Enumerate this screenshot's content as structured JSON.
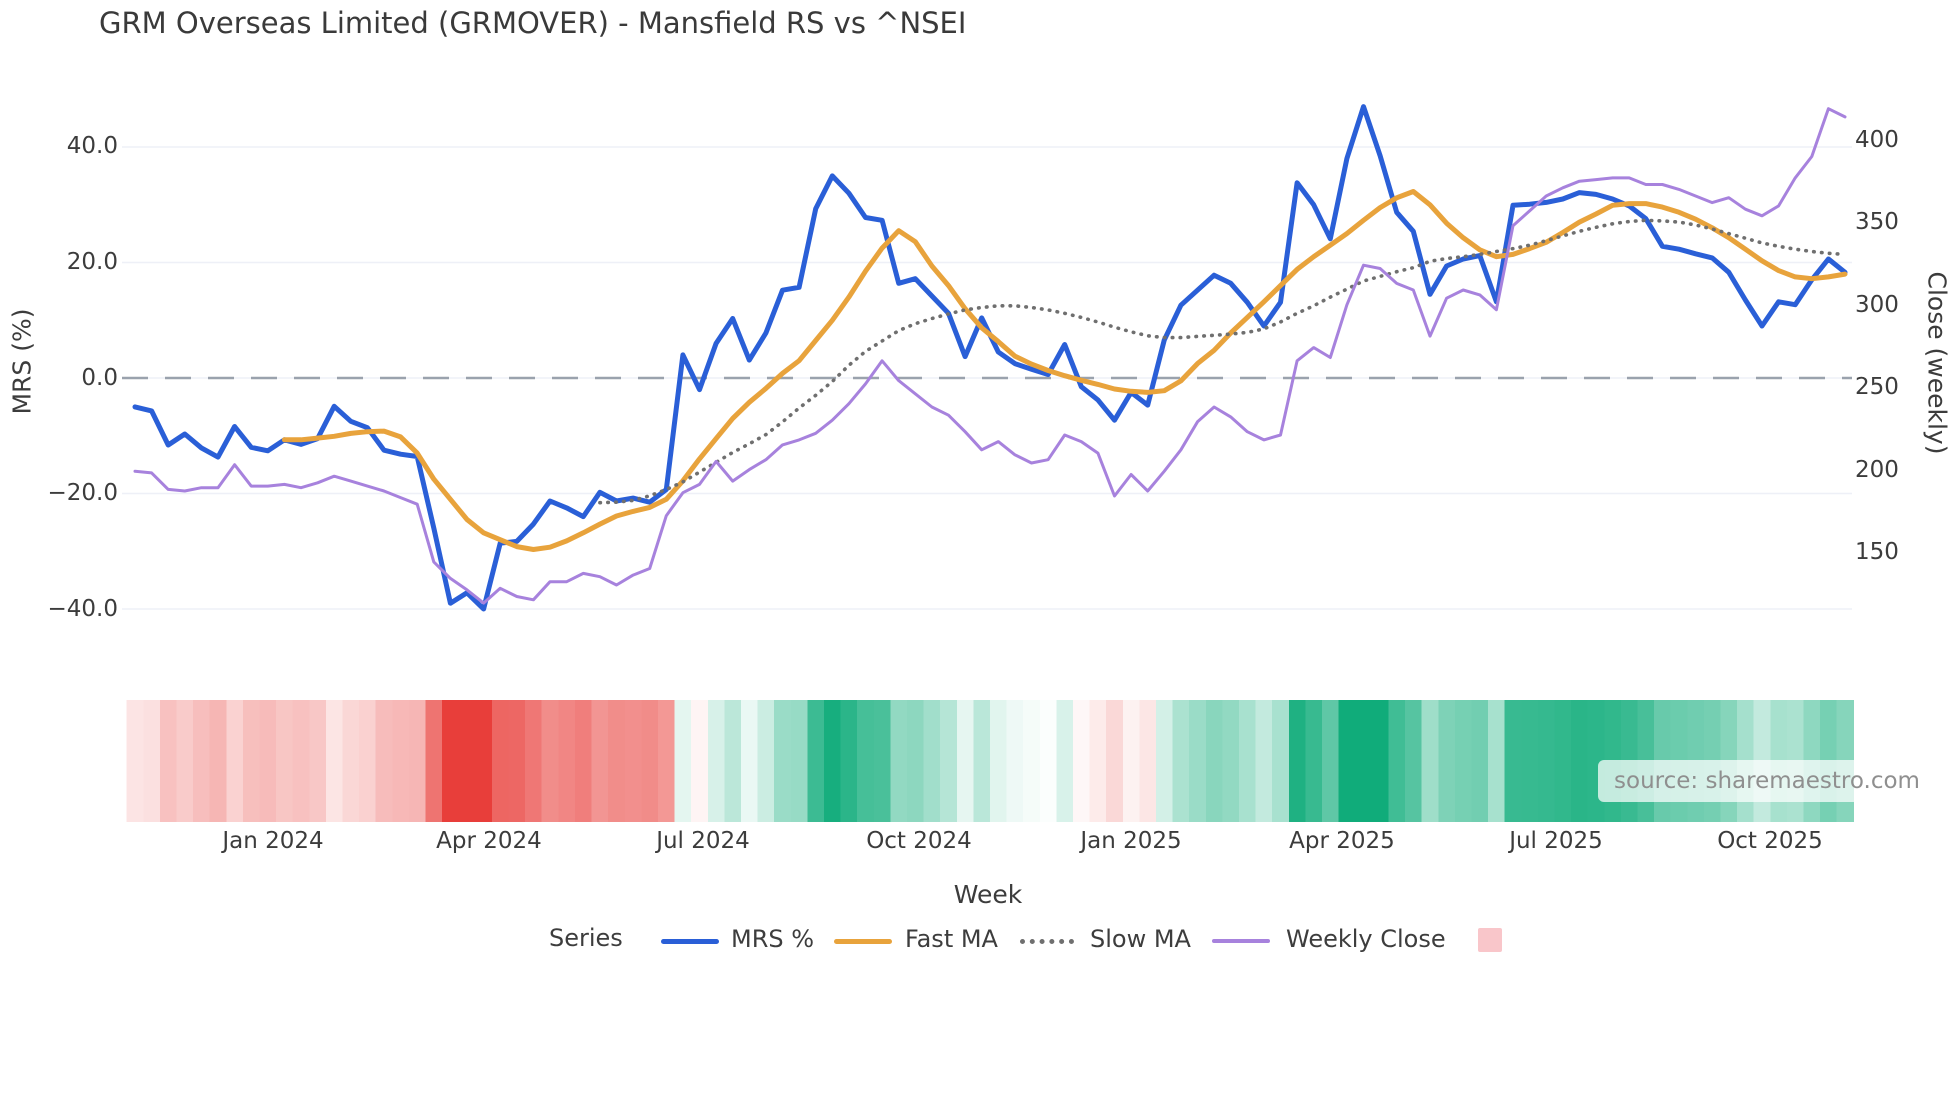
{
  "title": "GRM Overseas Limited (GRMOVER) - Mansfield RS vs ^NSEI",
  "axes": {
    "x": {
      "label": "Week",
      "ticks": [
        "Jan 2024",
        "Apr 2024",
        "Jul 2024",
        "Oct 2024",
        "Jan 2025",
        "Apr 2025",
        "Jul 2025",
        "Oct 2025"
      ]
    },
    "y_left": {
      "label": "MRS (%)",
      "ticks": [
        "40.0",
        "20.0",
        "0.0",
        "−20.0",
        "−40.0"
      ]
    },
    "y_right": {
      "label": "Close (weekly)",
      "ticks": [
        "400",
        "350",
        "300",
        "250",
        "200",
        "150"
      ]
    }
  },
  "legend": {
    "title": "Series",
    "items": [
      {
        "label": "MRS %",
        "color": "#2a5fd7",
        "swatch": "line"
      },
      {
        "label": "Fast MA",
        "color": "#e8a33c",
        "swatch": "line"
      },
      {
        "label": "Slow MA",
        "color": "#6f6f6f",
        "swatch": "dotted-line"
      },
      {
        "label": "Weekly Close",
        "color": "#a782dd",
        "swatch": "line"
      },
      {
        "label": "",
        "color": "#f9c6ca",
        "swatch": "square"
      }
    ]
  },
  "source_note": "source: sharemaestro.com",
  "chart_data": {
    "type": "line",
    "title": "GRM Overseas Limited (GRMOVER) - Mansfield RS vs ^NSEI",
    "xlabel": "Week",
    "x_axis": {
      "unit": "week_index",
      "n_points": 104,
      "tick_labels": [
        "Jan 2024",
        "Apr 2024",
        "Jul 2024",
        "Oct 2024",
        "Jan 2025",
        "Apr 2025",
        "Jul 2025",
        "Oct 2025"
      ],
      "tick_week_index": [
        8.3,
        21.3,
        34.2,
        47.2,
        60.0,
        72.7,
        85.6,
        98.5
      ]
    },
    "y_left": {
      "label": "MRS (%)",
      "tick_values": [
        40,
        20,
        0,
        -20,
        -40
      ],
      "range": [
        -46,
        48
      ],
      "zero_line_dashed": true,
      "grid": true
    },
    "y_right": {
      "label": "Close (weekly)",
      "tick_values": [
        400,
        350,
        300,
        250,
        200,
        150
      ],
      "range": [
        97,
        425
      ],
      "grid": false
    },
    "series": [
      {
        "name": "MRS %",
        "axis": "left",
        "color": "#2a5fd7",
        "style": "solid",
        "width": 5,
        "values": [
          -5.0,
          -5.7,
          -11.6,
          -9.7,
          -12.1,
          -13.7,
          -8.4,
          -12.0,
          -12.6,
          -10.7,
          -11.5,
          -10.5,
          -4.9,
          -7.5,
          -8.6,
          -12.5,
          -13.2,
          -13.6,
          -26.0,
          -39.0,
          -37.2,
          -40.0,
          -28.6,
          -28.3,
          -25.3,
          -21.3,
          -22.5,
          -24.0,
          -19.8,
          -21.3,
          -20.8,
          -21.5,
          -19.3,
          4.0,
          -2.0,
          6.0,
          10.3,
          3.1,
          7.8,
          15.2,
          15.7,
          29.3,
          35.0,
          32.0,
          27.8,
          27.3,
          16.4,
          17.2,
          14.2,
          11.2,
          3.7,
          10.4,
          4.5,
          2.5,
          1.5,
          0.6,
          5.8,
          -1.5,
          -3.8,
          -7.3,
          -2.5,
          -4.7,
          6.6,
          12.6,
          15.2,
          17.8,
          16.4,
          13.1,
          9.0,
          13.1,
          33.8,
          30.0,
          24.1,
          38.0,
          47.0,
          38.5,
          28.7,
          25.4,
          14.5,
          19.4,
          20.6,
          21.2,
          13.2,
          29.9,
          30.1,
          30.4,
          31.0,
          32.1,
          31.8,
          31.0,
          29.8,
          27.6,
          22.8,
          22.3,
          21.5,
          20.8,
          18.3,
          13.5,
          9.0,
          13.2,
          12.7,
          17.0,
          20.6,
          18.3
        ]
      },
      {
        "name": "Fast MA",
        "axis": "left",
        "color": "#e8a33c",
        "style": "solid",
        "width": 5,
        "values": [
          null,
          null,
          null,
          null,
          null,
          null,
          null,
          null,
          null,
          -10.7,
          -10.7,
          -10.4,
          -10.1,
          -9.6,
          -9.3,
          -9.2,
          -10.2,
          -13.0,
          -17.5,
          -21.0,
          -24.5,
          -26.8,
          -28.0,
          -29.2,
          -29.7,
          -29.3,
          -28.2,
          -26.8,
          -25.3,
          -23.9,
          -23.1,
          -22.4,
          -21.0,
          -17.8,
          -14.0,
          -10.5,
          -7.0,
          -4.2,
          -1.8,
          0.8,
          3.0,
          6.5,
          10.0,
          14.0,
          18.5,
          22.5,
          25.5,
          23.6,
          19.4,
          16.0,
          12.0,
          8.7,
          6.3,
          3.8,
          2.4,
          1.3,
          0.4,
          -0.4,
          -1.1,
          -1.9,
          -2.3,
          -2.5,
          -2.2,
          -0.5,
          2.5,
          4.8,
          7.8,
          10.5,
          13.2,
          16.0,
          18.8,
          21.0,
          23.0,
          25.0,
          27.3,
          29.5,
          31.2,
          32.3,
          30.0,
          26.8,
          24.3,
          22.2,
          21.0,
          21.4,
          22.4,
          23.5,
          25.2,
          27.0,
          28.4,
          29.9,
          30.2,
          30.2,
          29.6,
          28.7,
          27.5,
          26.0,
          24.3,
          22.3,
          20.3,
          18.6,
          17.5,
          17.2,
          17.5,
          18.0
        ]
      },
      {
        "name": "Slow MA",
        "axis": "left",
        "color": "#6f6f6f",
        "style": "dotted",
        "width": 3.6,
        "values": [
          null,
          null,
          null,
          null,
          null,
          null,
          null,
          null,
          null,
          null,
          null,
          null,
          null,
          null,
          null,
          null,
          null,
          null,
          null,
          null,
          null,
          null,
          null,
          null,
          null,
          null,
          null,
          null,
          -21.6,
          -21.5,
          -21.2,
          -20.4,
          -19.3,
          -18.0,
          -16.3,
          -14.6,
          -12.9,
          -11.4,
          -9.8,
          -7.6,
          -5.2,
          -3.0,
          -0.6,
          2.2,
          4.6,
          6.4,
          8.2,
          9.4,
          10.3,
          11.1,
          11.8,
          12.2,
          12.5,
          12.5,
          12.2,
          11.8,
          11.2,
          10.5,
          9.7,
          8.8,
          8.0,
          7.3,
          7.0,
          7.0,
          7.2,
          7.4,
          7.6,
          7.9,
          8.5,
          9.7,
          11.2,
          12.5,
          14.0,
          15.4,
          16.8,
          17.6,
          18.4,
          19.1,
          20.2,
          20.7,
          21.0,
          21.4,
          21.9,
          22.4,
          23.0,
          23.8,
          24.6,
          25.4,
          26.1,
          26.7,
          27.1,
          27.3,
          27.2,
          27.0,
          26.5,
          25.8,
          25.0,
          24.2,
          23.4,
          22.8,
          22.3,
          21.9,
          21.6,
          21.4
        ]
      },
      {
        "name": "Weekly Close",
        "axis": "right",
        "color": "#a782dd",
        "style": "solid",
        "width": 3,
        "values": [
          199,
          198,
          188,
          187,
          189,
          189,
          203,
          190,
          190,
          191,
          189,
          192,
          196,
          193,
          190,
          187,
          183,
          179,
          144,
          134,
          127,
          119,
          128,
          123,
          121,
          132,
          132,
          137,
          135,
          130,
          136,
          140,
          172,
          186,
          191,
          205,
          193,
          200,
          206,
          215,
          218,
          222,
          230,
          240,
          252,
          266,
          254,
          246,
          238,
          233,
          223,
          212,
          217,
          209,
          204,
          206,
          221,
          217,
          210,
          184,
          197,
          187,
          199,
          212,
          229,
          238,
          232,
          223,
          218,
          221,
          266,
          274,
          268,
          300,
          324,
          322,
          313,
          309,
          281,
          304,
          309,
          306,
          297,
          348,
          357,
          366,
          371,
          375,
          376,
          377,
          377,
          373,
          373,
          370,
          366,
          362,
          365,
          358,
          354,
          360,
          377,
          390,
          419,
          414
        ]
      }
    ],
    "heatmap_strip": {
      "derived_from": "MRS %",
      "rule": "cell color = white blended toward positive_color for MRS>0 and negative_color for MRS<0, saturation = |MRS|/36",
      "positive_color": "#10ac7a",
      "negative_color": "#e83e3a"
    },
    "legend_position": "bottom-center",
    "grid": "horizontal-only"
  },
  "style_colors": {
    "grid": "#eef0f7",
    "zero_dash": "#9aa2ad",
    "tick_text": "#3c3c3c",
    "title_text": "#3a3a3a",
    "source_text": "#8f8f8f",
    "source_box": "rgba(255,255,255,0.72)"
  }
}
